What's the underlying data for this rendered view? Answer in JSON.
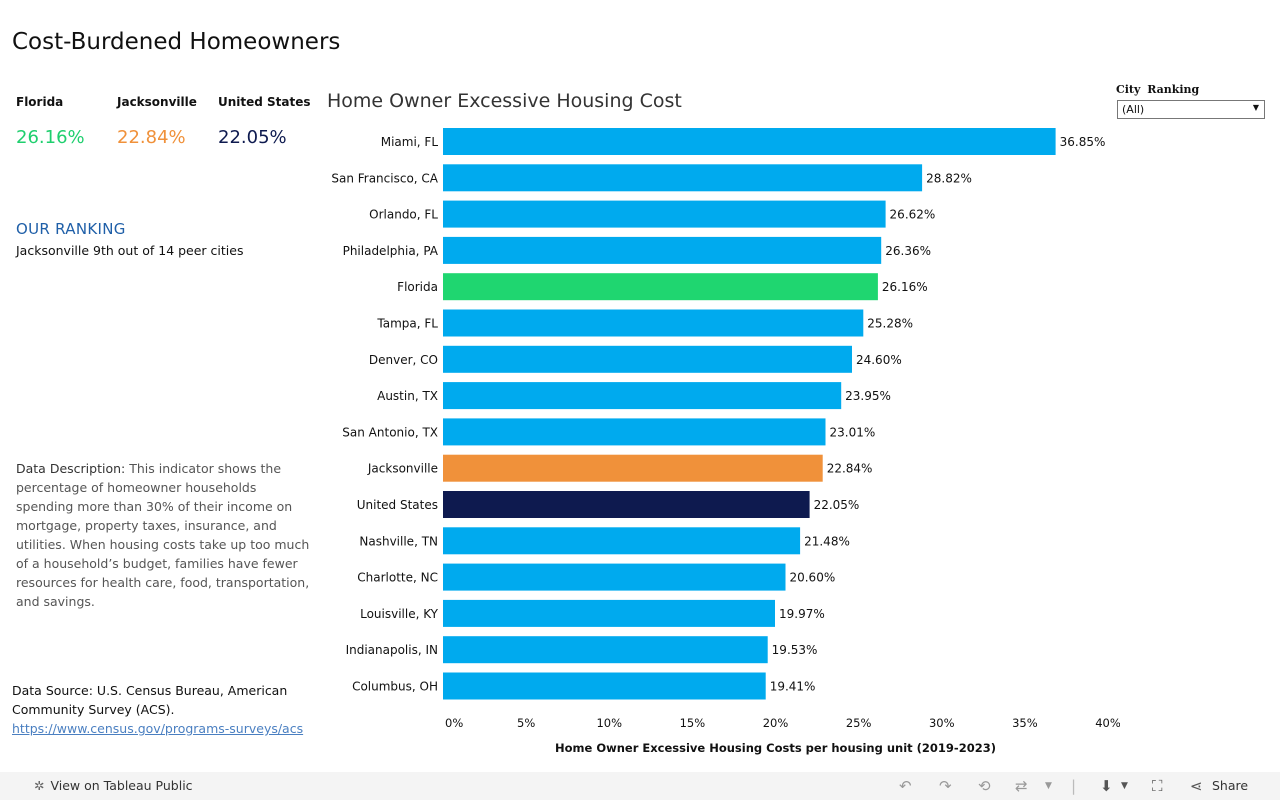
{
  "page_title": "Cost-Burdened Homeowners",
  "kpis": [
    {
      "label": "Florida",
      "value": "26.16%",
      "color": "#1fcf6e"
    },
    {
      "label": "Jacksonville",
      "value": "22.84%",
      "color": "#f0913a"
    },
    {
      "label": "United States",
      "value": "22.05%",
      "color": "#0e1a4f"
    }
  ],
  "ranking": {
    "heading": "OUR RANKING",
    "text": "Jacksonville 9th out of 14 peer cities"
  },
  "description": {
    "lead": "Data Description:",
    "body": " This indicator shows the percentage of homeowner households spending more than 30% of their income on mortgage, property taxes, insurance, and utilities. When housing costs take up too much of a household’s budget, families have fewer resources for health care, food, transportation, and savings."
  },
  "source": {
    "text": "Data Source: U.S. Census Bureau, American Community Survey (ACS).",
    "link": "https://www.census.gov/programs-surveys/acs"
  },
  "filter": {
    "label": "City Ranking",
    "value": "(All)"
  },
  "footer": {
    "view_label": "View on Tableau Public",
    "share_label": "Share"
  },
  "chart_data": {
    "type": "bar",
    "orientation": "horizontal",
    "title": "Home Owner Excessive Housing Cost",
    "xlabel": "Home Owner Excessive Housing Costs per housing unit (2019-2023)",
    "ylabel": "",
    "xlim": [
      0,
      40
    ],
    "xticks": [
      "0%",
      "5%",
      "10%",
      "15%",
      "20%",
      "25%",
      "30%",
      "35%",
      "40%"
    ],
    "categories": [
      "Miami, FL",
      "San Francisco, CA",
      "Orlando, FL",
      "Philadelphia, PA",
      "Florida",
      "Tampa, FL",
      "Denver, CO",
      "Austin, TX",
      "San Antonio, TX",
      "Jacksonville",
      "United States",
      "Nashville, TN",
      "Charlotte, NC",
      "Louisville, KY",
      "Indianapolis, IN",
      "Columbus, OH"
    ],
    "values": [
      36.85,
      28.82,
      26.62,
      26.36,
      26.16,
      25.28,
      24.6,
      23.95,
      23.01,
      22.84,
      22.05,
      21.48,
      20.6,
      19.97,
      19.53,
      19.41
    ],
    "labels": [
      "36.85%",
      "28.82%",
      "26.62%",
      "26.36%",
      "26.16%",
      "25.28%",
      "24.60%",
      "23.95%",
      "23.01%",
      "22.84%",
      "22.05%",
      "21.48%",
      "20.60%",
      "19.97%",
      "19.53%",
      "19.41%"
    ],
    "default_color": "#00aaee",
    "highlight_colors": {
      "Florida": "#1fd670",
      "Jacksonville": "#f0913a",
      "United States": "#0e1a4f"
    }
  }
}
